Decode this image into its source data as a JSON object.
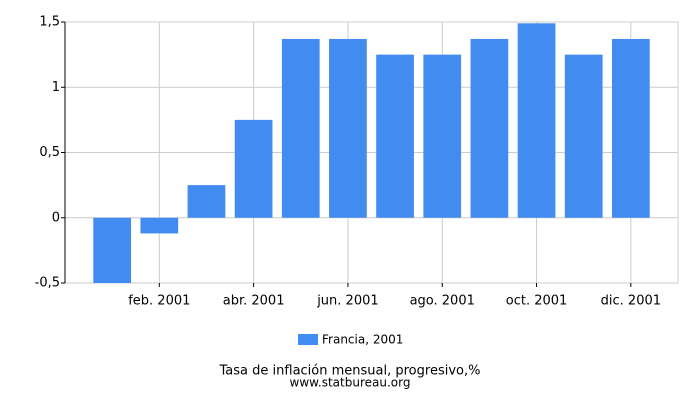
{
  "chart_data": {
    "type": "bar",
    "title": "Tasa de inflación mensual, progresivo,%",
    "source": "www.statbureau.org",
    "categories": [
      null,
      "feb. 2001",
      null,
      "abr. 2001",
      null,
      "jun. 2001",
      null,
      "ago. 2001",
      null,
      "oct. 2001",
      null,
      "dic. 2001"
    ],
    "series": [
      {
        "name": "Francia, 2001",
        "color": "#428bf0",
        "values": [
          -0.5,
          -0.12,
          0.25,
          0.75,
          1.37,
          1.37,
          1.25,
          1.25,
          1.37,
          1.49,
          1.25,
          1.37
        ]
      }
    ],
    "ylim": [
      -0.5,
      1.5
    ],
    "yticks": [
      {
        "value": -0.5,
        "label": "-0,5"
      },
      0,
      {
        "value": 0.5,
        "label": "0,5"
      },
      1,
      {
        "value": 1.5,
        "label": "1,5"
      }
    ],
    "grid": true
  }
}
